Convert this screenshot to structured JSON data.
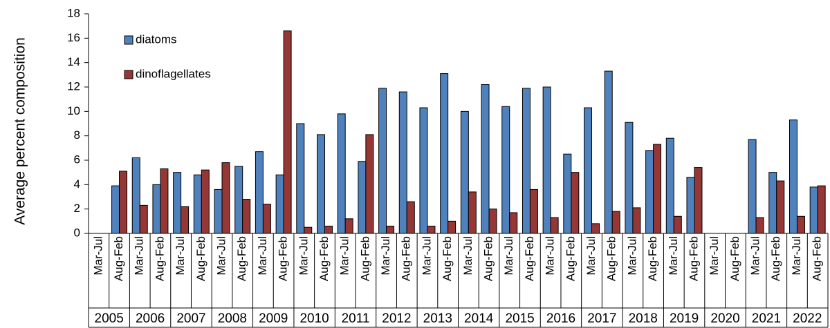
{
  "chart_data": {
    "type": "bar",
    "y_label": "Average percent composition",
    "categories": [
      "Mar-Jul",
      "Aug-Feb",
      "Mar-Jul",
      "Aug-Feb",
      "Mar-Jul",
      "Aug-Feb",
      "Mar-Jul",
      "Aug-Feb",
      "Mar-Jul",
      "Aug-Feb",
      "Mar-Jul",
      "Aug-Feb",
      "Mar-Jul",
      "Aug-Feb",
      "Mar-Jul",
      "Aug-Feb",
      "Mar-Jul",
      "Aug-Feb",
      "Mar-Jul",
      "Aug-Feb",
      "Mar-Jul",
      "Aug-Feb",
      "Mar-Jul",
      "Aug-Feb",
      "Mar-Jul",
      "Aug-Feb",
      "Mar-Jul",
      "Aug-Feb",
      "Mar-Jul",
      "Aug-Feb",
      "Mar-Jul",
      "Aug-Feb",
      "Mar-Jul",
      "Aug-Feb",
      "Mar-Jul",
      "Aug-Feb"
    ],
    "years": [
      "2005",
      "2006",
      "2007",
      "2008",
      "2009",
      "2010",
      "2011",
      "2012",
      "2013",
      "2014",
      "2015",
      "2016",
      "2017",
      "2018",
      "2019",
      "2020",
      "2021",
      "2022"
    ],
    "series": [
      {
        "name": "diatoms",
        "color": "#4f81bd",
        "values": [
          null,
          3.9,
          6.2,
          4.0,
          5.0,
          4.8,
          3.6,
          5.5,
          6.7,
          4.8,
          9.0,
          8.1,
          9.8,
          5.9,
          11.9,
          11.6,
          10.3,
          13.1,
          10.0,
          12.2,
          10.4,
          11.9,
          12.0,
          6.5,
          10.3,
          13.3,
          9.1,
          6.8,
          7.8,
          4.6,
          null,
          null,
          7.7,
          5.0,
          9.3,
          3.8
        ]
      },
      {
        "name": "dinoflagellates",
        "color": "#953735",
        "values": [
          null,
          5.1,
          2.3,
          5.3,
          2.2,
          5.2,
          5.8,
          2.8,
          2.4,
          16.6,
          0.5,
          0.6,
          1.2,
          8.1,
          0.6,
          2.6,
          0.6,
          1.0,
          3.4,
          2.0,
          1.7,
          3.6,
          1.3,
          5.0,
          0.8,
          1.8,
          2.1,
          7.3,
          1.4,
          5.4,
          null,
          null,
          1.3,
          4.3,
          1.4,
          3.9
        ]
      }
    ],
    "ylim": [
      0,
      18
    ],
    "yticks": [
      0,
      2,
      4,
      6,
      8,
      10,
      12,
      14,
      16,
      18
    ],
    "legend": "upper left"
  }
}
